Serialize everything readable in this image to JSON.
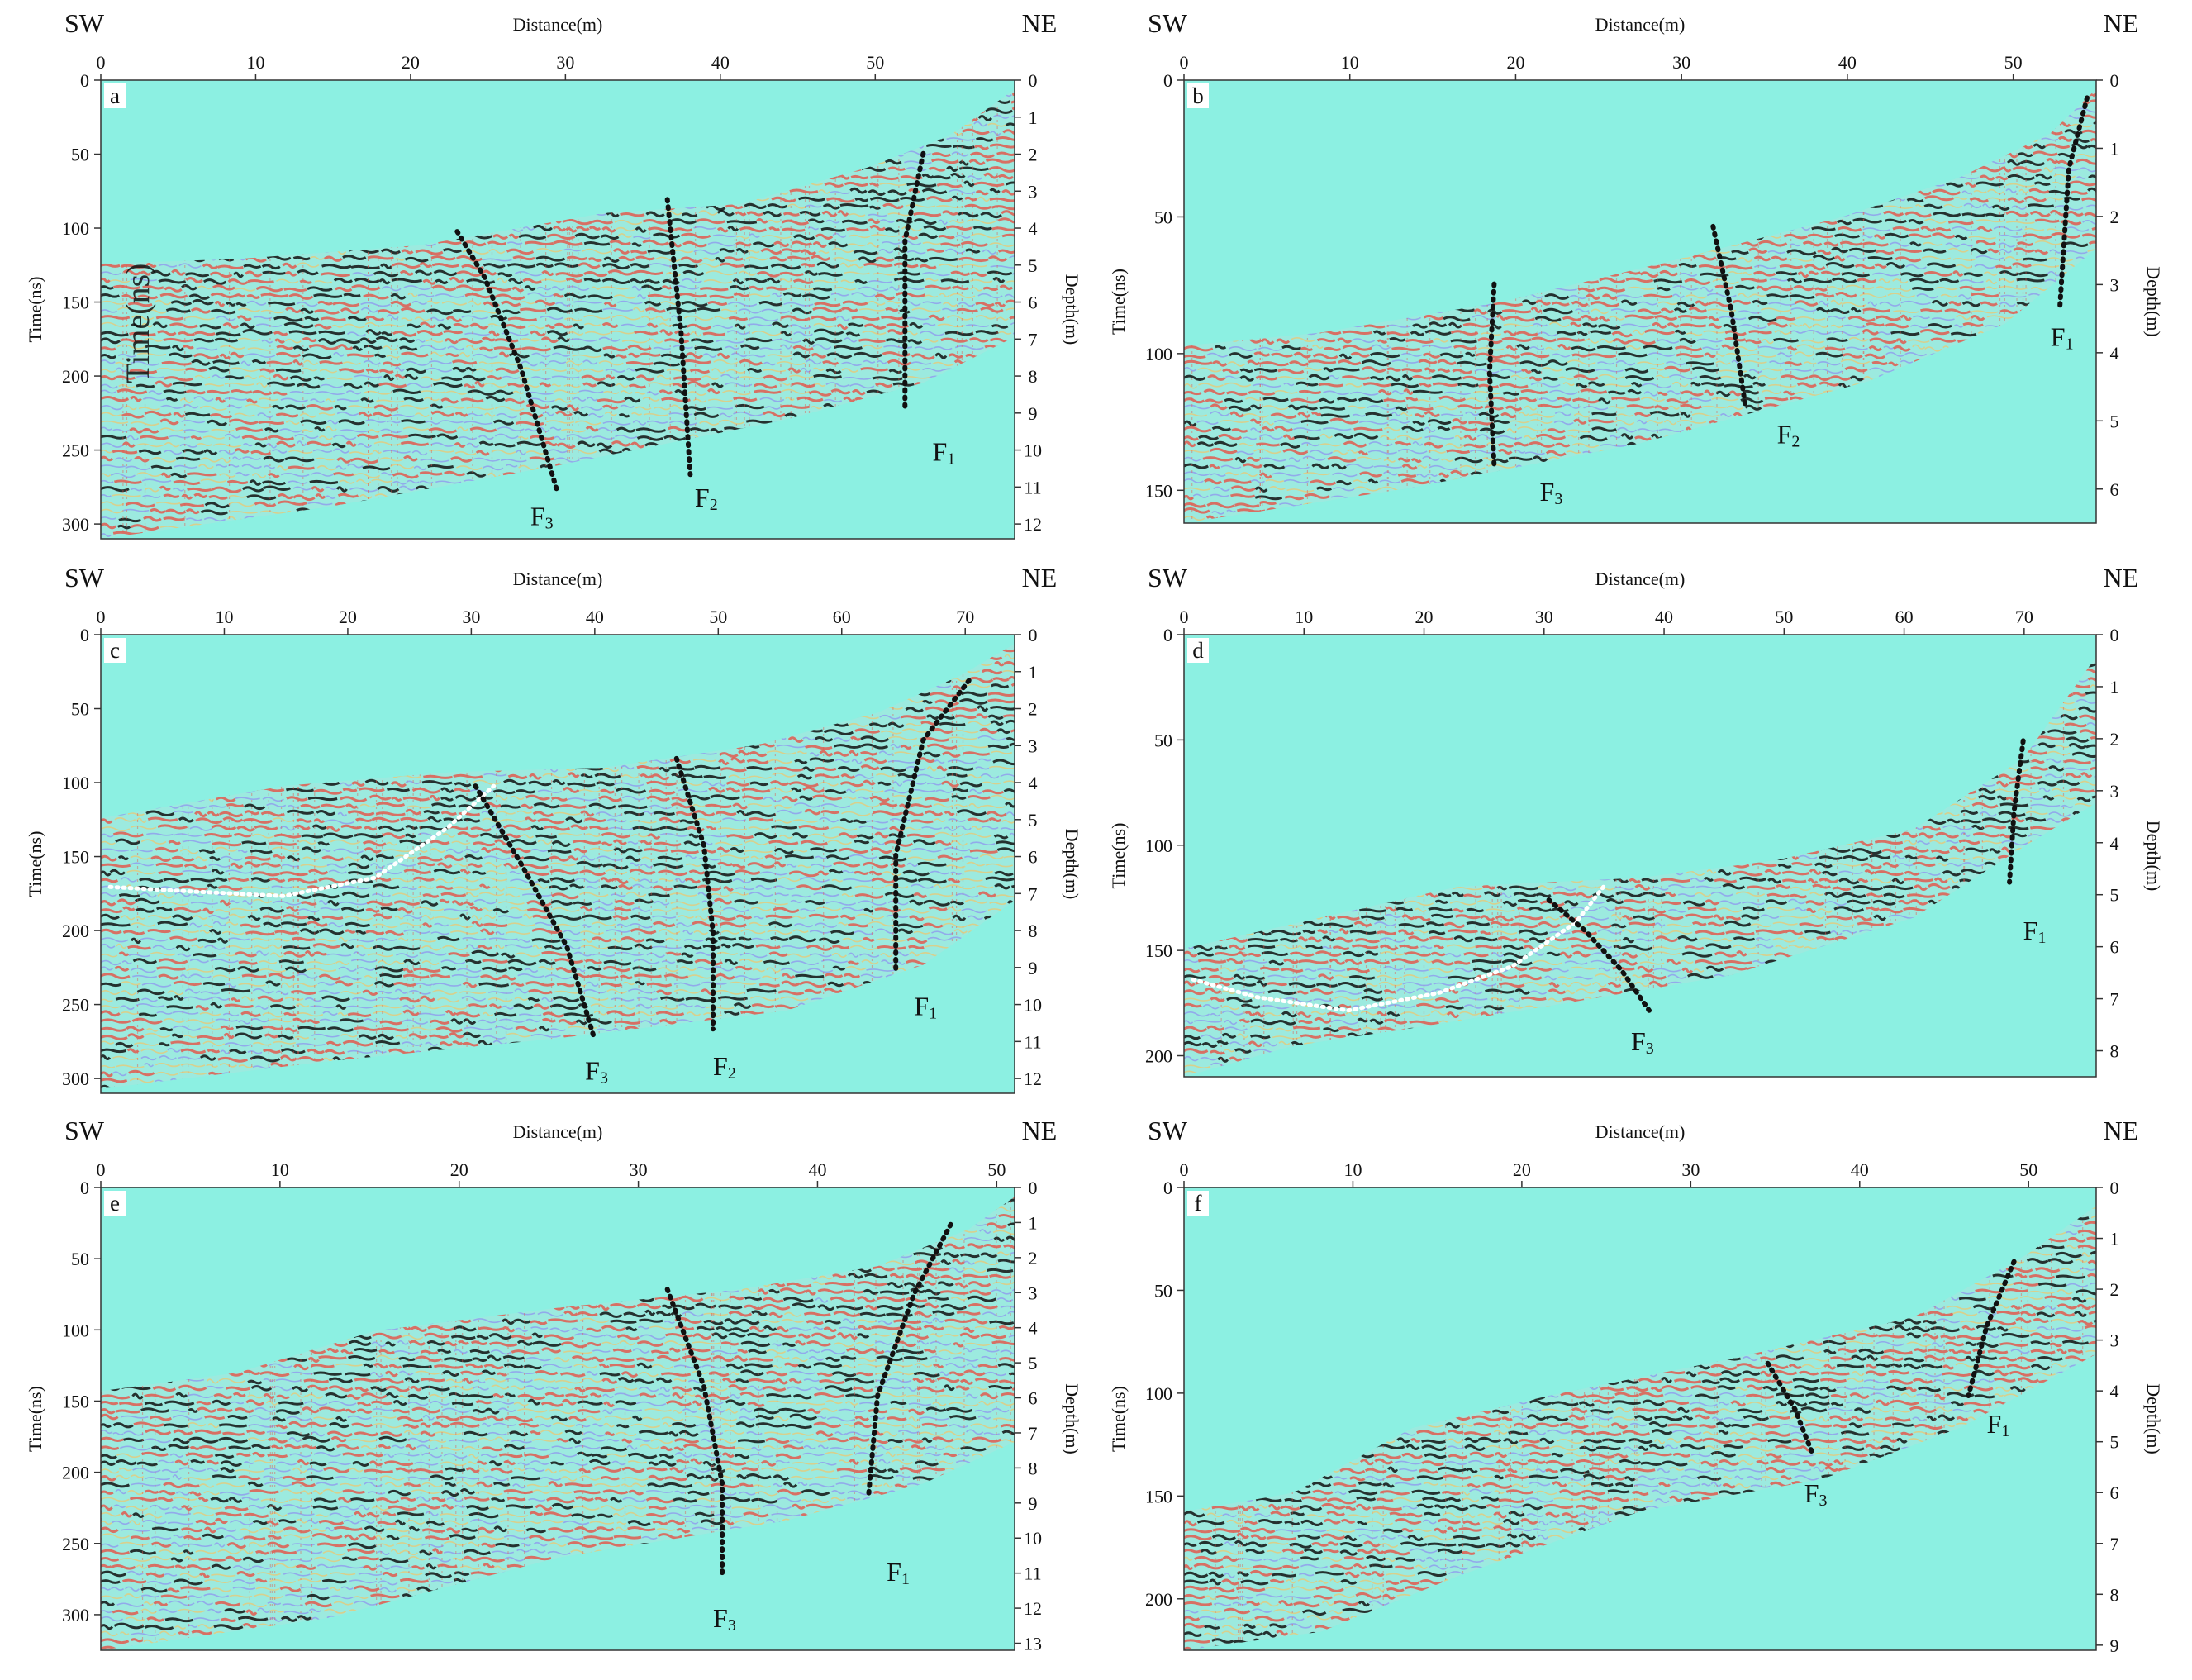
{
  "figure": {
    "panel_color": "#8cf0e2",
    "wave_colors": [
      "#111111",
      "#e25a4f",
      "#f2c46a",
      "#8f8ff0"
    ],
    "fault_color": "#111111",
    "interface_color": "#ffffff",
    "panels": [
      {
        "id": "a",
        "left_dir": "SW",
        "right_dir": "NE",
        "x_title": "Distance(m)",
        "y_title": "Time(ns)",
        "y2_title": "Depth(m)",
        "x_ticks": [
          "0",
          "10",
          "20",
          "30",
          "40",
          "50"
        ],
        "x_max": 59,
        "time_ticks": [
          "0",
          "50",
          "100",
          "150",
          "200",
          "250",
          "300"
        ],
        "time_max": 310,
        "depth_ticks": [
          "0",
          "1",
          "2",
          "3",
          "4",
          "5",
          "6",
          "7",
          "8",
          "9",
          "10",
          "11",
          "12"
        ],
        "depth_max": 12.4,
        "overlay_text": "Time(ns)",
        "faults": [
          {
            "label": "F",
            "sub": "3"
          },
          {
            "label": "F",
            "sub": "2"
          },
          {
            "label": "F",
            "sub": "1"
          }
        ]
      },
      {
        "id": "b",
        "left_dir": "SW",
        "right_dir": "NE",
        "x_title": "Distance(m)",
        "y_title": "Time(ns)",
        "y2_title": "Depth(m)",
        "x_ticks": [
          "0",
          "10",
          "20",
          "30",
          "40",
          "50"
        ],
        "x_max": 55,
        "time_ticks": [
          "0",
          "50",
          "100",
          "150"
        ],
        "time_max": 162,
        "depth_ticks": [
          "0",
          "1",
          "2",
          "3",
          "4",
          "5",
          "6"
        ],
        "depth_max": 6.5,
        "faults": [
          {
            "label": "F",
            "sub": "3"
          },
          {
            "label": "F",
            "sub": "2"
          },
          {
            "label": "F",
            "sub": "1"
          }
        ]
      },
      {
        "id": "c",
        "left_dir": "SW",
        "right_dir": "NE",
        "x_title": "Distance(m)",
        "y_title": "Time(ns)",
        "y2_title": "Depth(m)",
        "x_ticks": [
          "0",
          "10",
          "20",
          "30",
          "40",
          "50",
          "60",
          "70"
        ],
        "x_max": 74,
        "time_ticks": [
          "0",
          "50",
          "100",
          "150",
          "200",
          "250",
          "300"
        ],
        "time_max": 310,
        "depth_ticks": [
          "0",
          "1",
          "2",
          "3",
          "4",
          "5",
          "6",
          "7",
          "8",
          "9",
          "10",
          "11",
          "12"
        ],
        "depth_max": 12.4,
        "faults": [
          {
            "label": "F",
            "sub": "3"
          },
          {
            "label": "F",
            "sub": "2"
          },
          {
            "label": "F",
            "sub": "1"
          }
        ]
      },
      {
        "id": "d",
        "left_dir": "SW",
        "right_dir": "NE",
        "x_title": "Distance(m)",
        "y_title": "Time(ns)",
        "y2_title": "Depth(m)",
        "x_ticks": [
          "0",
          "10",
          "20",
          "30",
          "40",
          "50",
          "60",
          "70"
        ],
        "x_max": 76,
        "time_ticks": [
          "0",
          "50",
          "100",
          "150",
          "200"
        ],
        "time_max": 210,
        "depth_ticks": [
          "0",
          "1",
          "2",
          "3",
          "4",
          "5",
          "6",
          "7",
          "8"
        ],
        "depth_max": 8.5,
        "faults": [
          {
            "label": "F",
            "sub": "3"
          },
          {
            "label": "F",
            "sub": "1"
          }
        ]
      },
      {
        "id": "e",
        "left_dir": "SW",
        "right_dir": "NE",
        "x_title": "Distance(m)",
        "y_title": "Time(ns)",
        "y2_title": "Depth(m)",
        "x_ticks": [
          "0",
          "10",
          "20",
          "30",
          "40",
          "50"
        ],
        "x_max": 51,
        "time_ticks": [
          "0",
          "50",
          "100",
          "150",
          "200",
          "250",
          "300"
        ],
        "time_max": 325,
        "depth_ticks": [
          "0",
          "1",
          "2",
          "3",
          "4",
          "5",
          "6",
          "7",
          "8",
          "9",
          "10",
          "11",
          "12",
          "13"
        ],
        "depth_max": 13.2,
        "faults": [
          {
            "label": "F",
            "sub": "3"
          },
          {
            "label": "F",
            "sub": "1"
          }
        ]
      },
      {
        "id": "f",
        "left_dir": "SW",
        "right_dir": "NE",
        "x_title": "Distance(m)",
        "y_title": "Time(ns)",
        "y2_title": "Depth(m)",
        "x_ticks": [
          "0",
          "10",
          "20",
          "30",
          "40",
          "50"
        ],
        "x_max": 54,
        "time_ticks": [
          "0",
          "50",
          "100",
          "150",
          "200"
        ],
        "time_max": 225,
        "depth_ticks": [
          "0",
          "1",
          "2",
          "3",
          "4",
          "5",
          "6",
          "7",
          "8",
          "9"
        ],
        "depth_max": 9.1,
        "faults": [
          {
            "label": "F",
            "sub": "3"
          },
          {
            "label": "F",
            "sub": "1"
          }
        ]
      }
    ]
  }
}
